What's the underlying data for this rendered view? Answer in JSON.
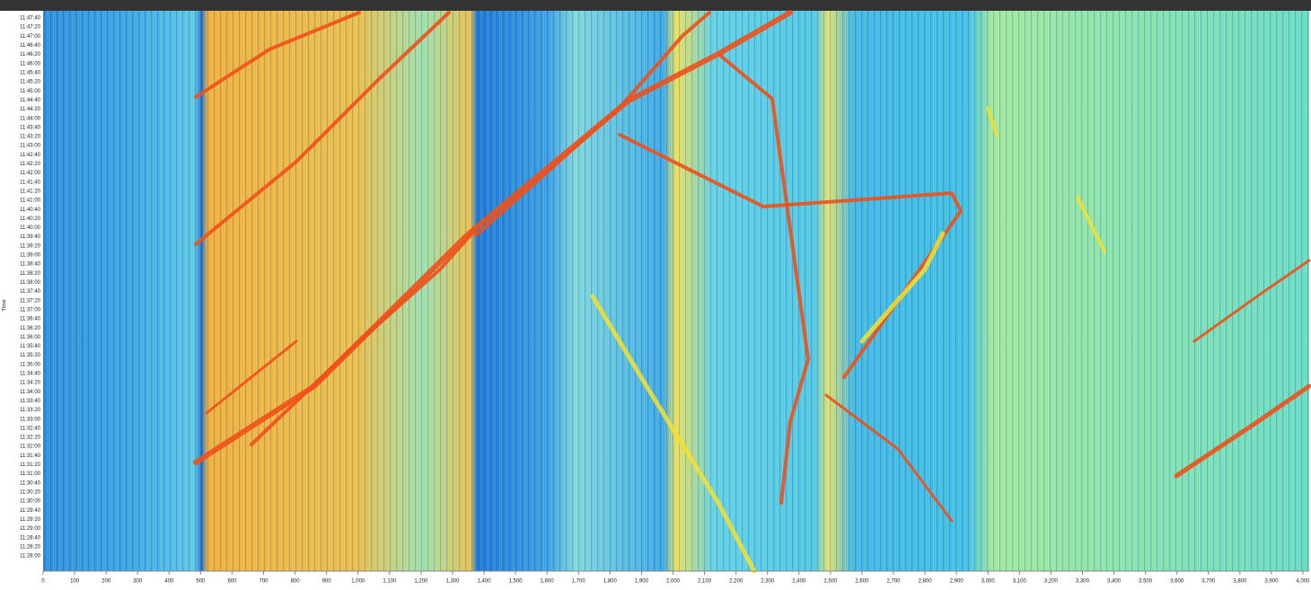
{
  "chart_data": {
    "type": "heatmap",
    "y_label": "Time",
    "y_categories": [
      "11:47:40",
      "11:47:20",
      "11:47:00",
      "11:46:40",
      "11:46:20",
      "11:46:00",
      "11:45:40",
      "11:45:20",
      "11:45:00",
      "11:44:40",
      "11:44:20",
      "11:44:00",
      "11:43:40",
      "11:43:20",
      "11:43:00",
      "11:42:40",
      "11:42:20",
      "11:42:00",
      "11:41:40",
      "11:41:20",
      "11:41:00",
      "11:40:40",
      "11:40:20",
      "11:40:00",
      "11:39:40",
      "11:39:20",
      "11:39:00",
      "11:38:40",
      "11:38:20",
      "11:38:00",
      "11:37:40",
      "11:37:20",
      "11:37:00",
      "11:36:40",
      "11:36:20",
      "11:36:00",
      "11:35:40",
      "11:35:20",
      "11:35:00",
      "11:34:40",
      "11:34:20",
      "11:34:00",
      "11:33:40",
      "11:33:20",
      "11:33:00",
      "11:32:40",
      "11:32:20",
      "11:32:00",
      "11:31:40",
      "11:31:20",
      "11:31:00",
      "11:30:40",
      "11:30:20",
      "11:30:00",
      "11:29:40",
      "11:29:20",
      "11:29:00",
      "11:28:40",
      "11:28:20",
      "11:28:00"
    ],
    "xlim": [
      0,
      4020
    ],
    "xticks": [
      0,
      100,
      200,
      300,
      400,
      500,
      600,
      700,
      800,
      900,
      {
        "value": 1000,
        "label": "1,000"
      },
      {
        "value": 1100,
        "label": "1,100"
      },
      {
        "value": 1200,
        "label": "1,200"
      },
      {
        "value": 1300,
        "label": "1,300"
      },
      {
        "value": 1400,
        "label": "1,400"
      },
      {
        "value": 1500,
        "label": "1,500"
      },
      {
        "value": 1600,
        "label": "1,600"
      },
      {
        "value": 1700,
        "label": "1,700"
      },
      {
        "value": 1800,
        "label": "1,800"
      },
      {
        "value": 1900,
        "label": "1,900"
      },
      {
        "value": 2000,
        "label": "2,000"
      },
      {
        "value": 2100,
        "label": "2,100"
      },
      {
        "value": 2200,
        "label": "2,200"
      },
      {
        "value": 2300,
        "label": "2,300"
      },
      {
        "value": 2400,
        "label": "2,400"
      },
      {
        "value": 2500,
        "label": "2,500"
      },
      {
        "value": 2600,
        "label": "2,600"
      },
      {
        "value": 2700,
        "label": "2,700"
      },
      {
        "value": 2800,
        "label": "2,800"
      },
      {
        "value": 2900,
        "label": "2,900"
      },
      {
        "value": 3000,
        "label": "3,000"
      },
      {
        "value": 3100,
        "label": "3,100"
      },
      {
        "value": 3200,
        "label": "3,200"
      },
      {
        "value": 3300,
        "label": "3,300"
      },
      {
        "value": 3400,
        "label": "3,400"
      },
      {
        "value": 3500,
        "label": "3,500"
      },
      {
        "value": 3600,
        "label": "3,600"
      },
      {
        "value": 3700,
        "label": "3,700"
      },
      {
        "value": 3800,
        "label": "3,800"
      },
      {
        "value": 3900,
        "label": "3,900"
      },
      {
        "value": 4000,
        "label": "4,000"
      }
    ]
  }
}
